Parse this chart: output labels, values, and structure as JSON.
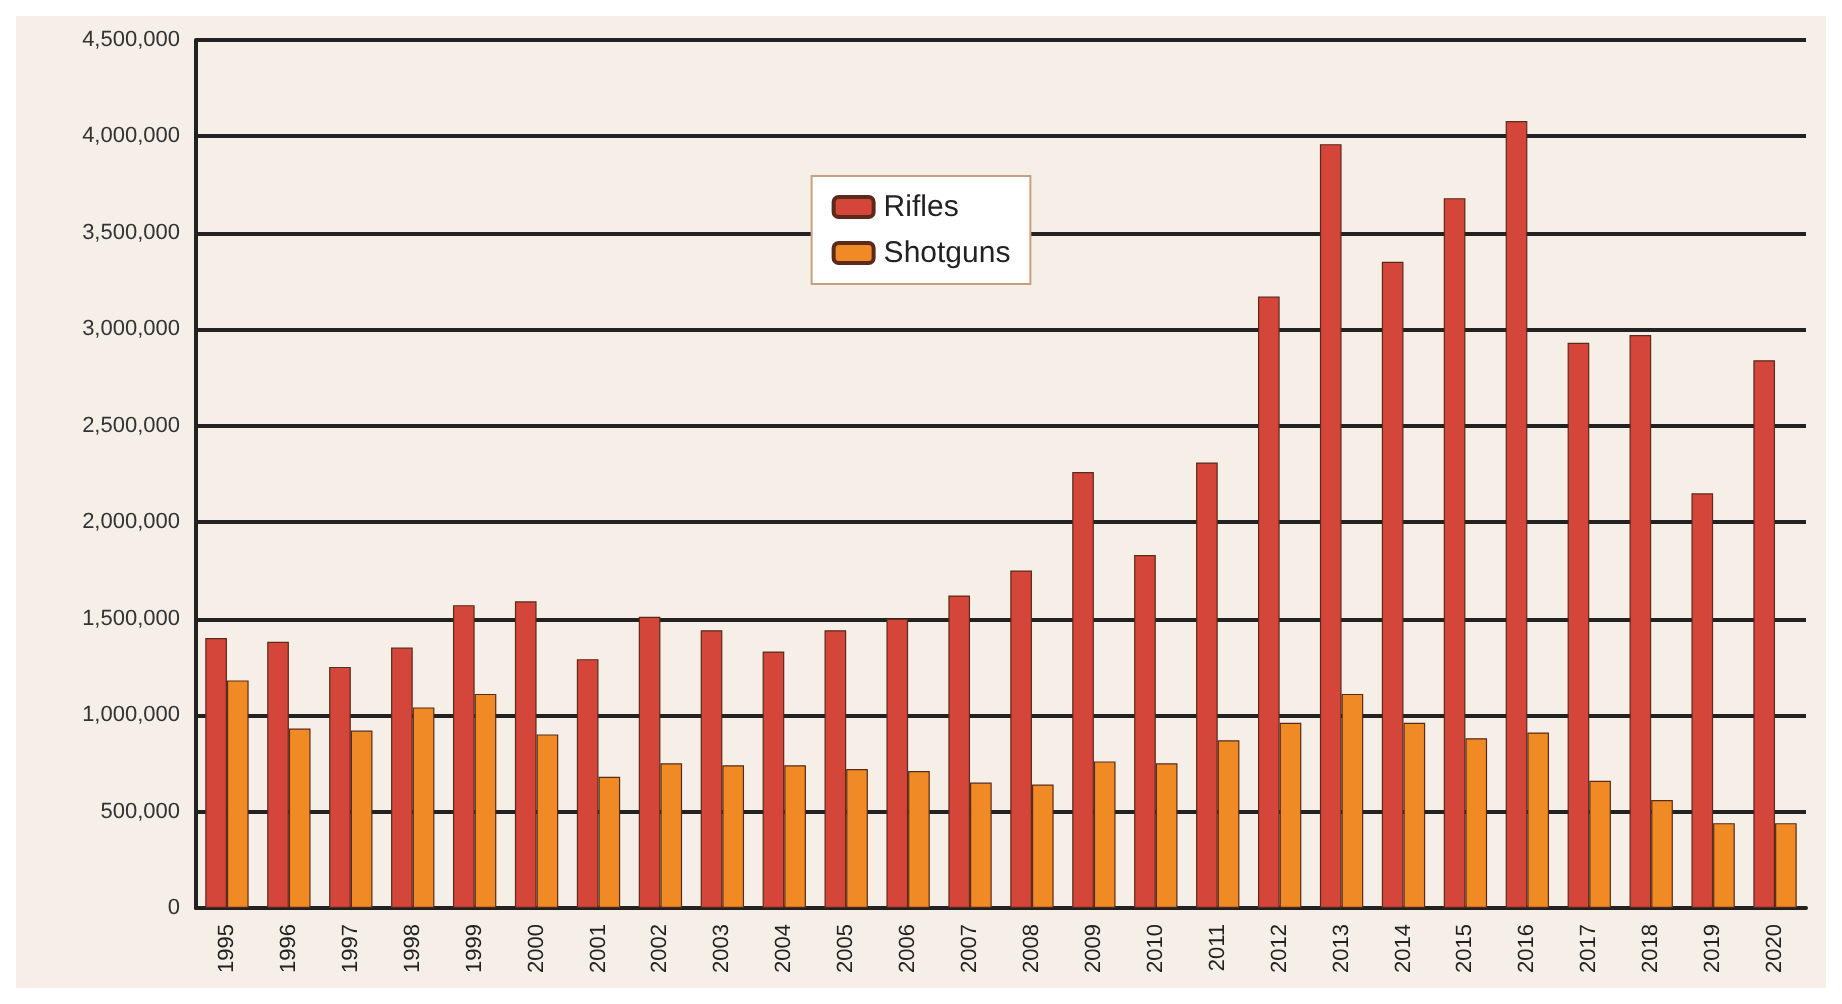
{
  "chart_data": {
    "type": "bar",
    "categories": [
      "1995",
      "1996",
      "1997",
      "1998",
      "1999",
      "2000",
      "2001",
      "2002",
      "2003",
      "2004",
      "2005",
      "2006",
      "2007",
      "2008",
      "2009",
      "2010",
      "2011",
      "2012",
      "2013",
      "2014",
      "2015",
      "2016",
      "2017",
      "2018",
      "2019",
      "2020"
    ],
    "series": [
      {
        "name": "Rifles",
        "color": "#d4453a",
        "values": [
          1400000,
          1380000,
          1250000,
          1350000,
          1570000,
          1590000,
          1290000,
          1510000,
          1440000,
          1330000,
          1440000,
          1500000,
          1620000,
          1750000,
          2260000,
          1830000,
          2310000,
          3170000,
          3960000,
          3350000,
          3680000,
          4080000,
          2930000,
          2970000,
          2150000,
          2840000
        ]
      },
      {
        "name": "Shotguns",
        "color": "#f08a24",
        "values": [
          1180000,
          930000,
          920000,
          1040000,
          1110000,
          900000,
          680000,
          750000,
          740000,
          740000,
          720000,
          710000,
          650000,
          640000,
          760000,
          750000,
          870000,
          960000,
          1110000,
          960000,
          880000,
          910000,
          660000,
          560000,
          440000,
          440000
        ]
      }
    ],
    "ylim": [
      0,
      4500000
    ],
    "yticks": [
      0,
      {
        "value": 500000,
        "label": "500,000"
      },
      {
        "value": 1000000,
        "label": "1,000,000"
      },
      {
        "value": 1500000,
        "label": "1,500,000"
      },
      {
        "value": 2000000,
        "label": "2,000,000"
      },
      {
        "value": 2500000,
        "label": "2,500,000"
      },
      {
        "value": 3000000,
        "label": "3,000,000"
      },
      {
        "value": 3500000,
        "label": "3,500,000"
      },
      {
        "value": 4000000,
        "label": "4,000,000"
      },
      {
        "value": 4500000,
        "label": "4,500,000"
      }
    ],
    "grid": "y",
    "legend": "top"
  }
}
